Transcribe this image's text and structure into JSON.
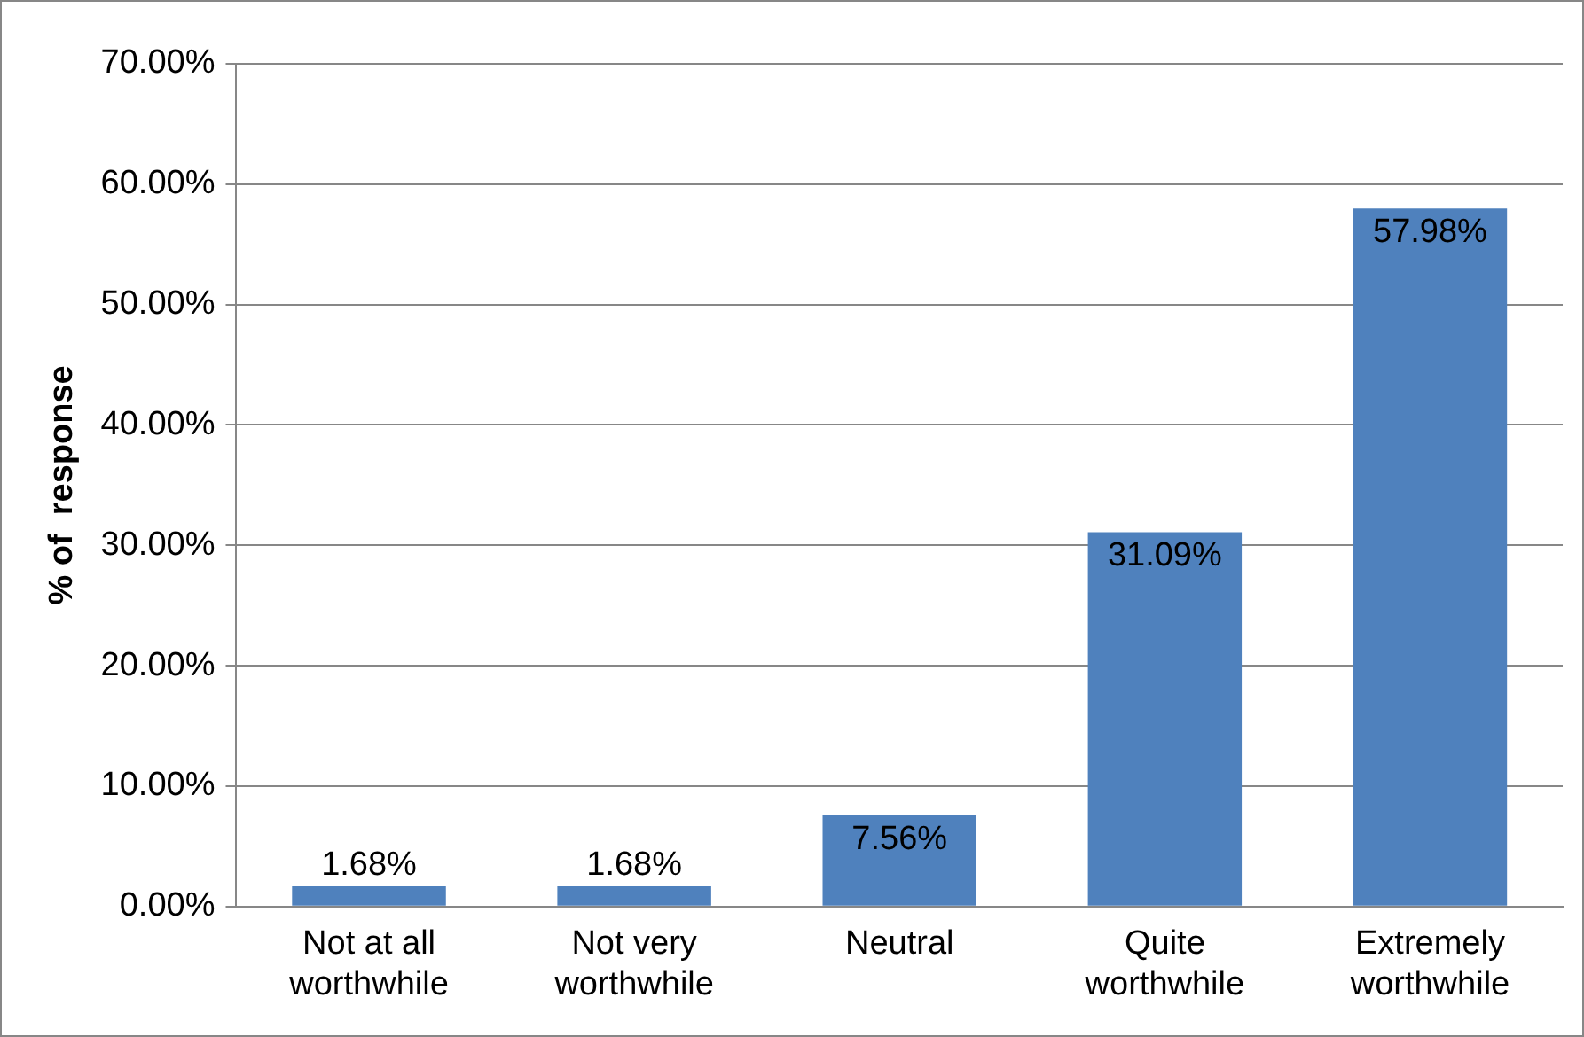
{
  "chart_data": {
    "type": "bar",
    "ylabel": "% of  response",
    "categories": [
      "Not at all worthwhile",
      "Not very worthwhile",
      "Neutral",
      "Quite worthwhile",
      "Extremely worthwhile"
    ],
    "values": [
      1.68,
      1.68,
      7.56,
      31.09,
      57.98
    ],
    "color": "#4f81bd",
    "ylim": [
      0,
      70
    ],
    "yticks": [
      {
        "value": 0,
        "label": "0.00%"
      },
      {
        "value": 10,
        "label": "10.00%"
      },
      {
        "value": 20,
        "label": "20.00%"
      },
      {
        "value": 30,
        "label": "30.00%"
      },
      {
        "value": 40,
        "label": "40.00%"
      },
      {
        "value": 50,
        "label": "50.00%"
      },
      {
        "value": 60,
        "label": "60.00%"
      },
      {
        "value": 70,
        "label": "70.00%"
      }
    ],
    "value_labels": [
      "1.68%",
      "1.68%",
      "7.56%",
      "31.09%",
      "57.98%"
    ],
    "grid": "y",
    "legend": false
  }
}
